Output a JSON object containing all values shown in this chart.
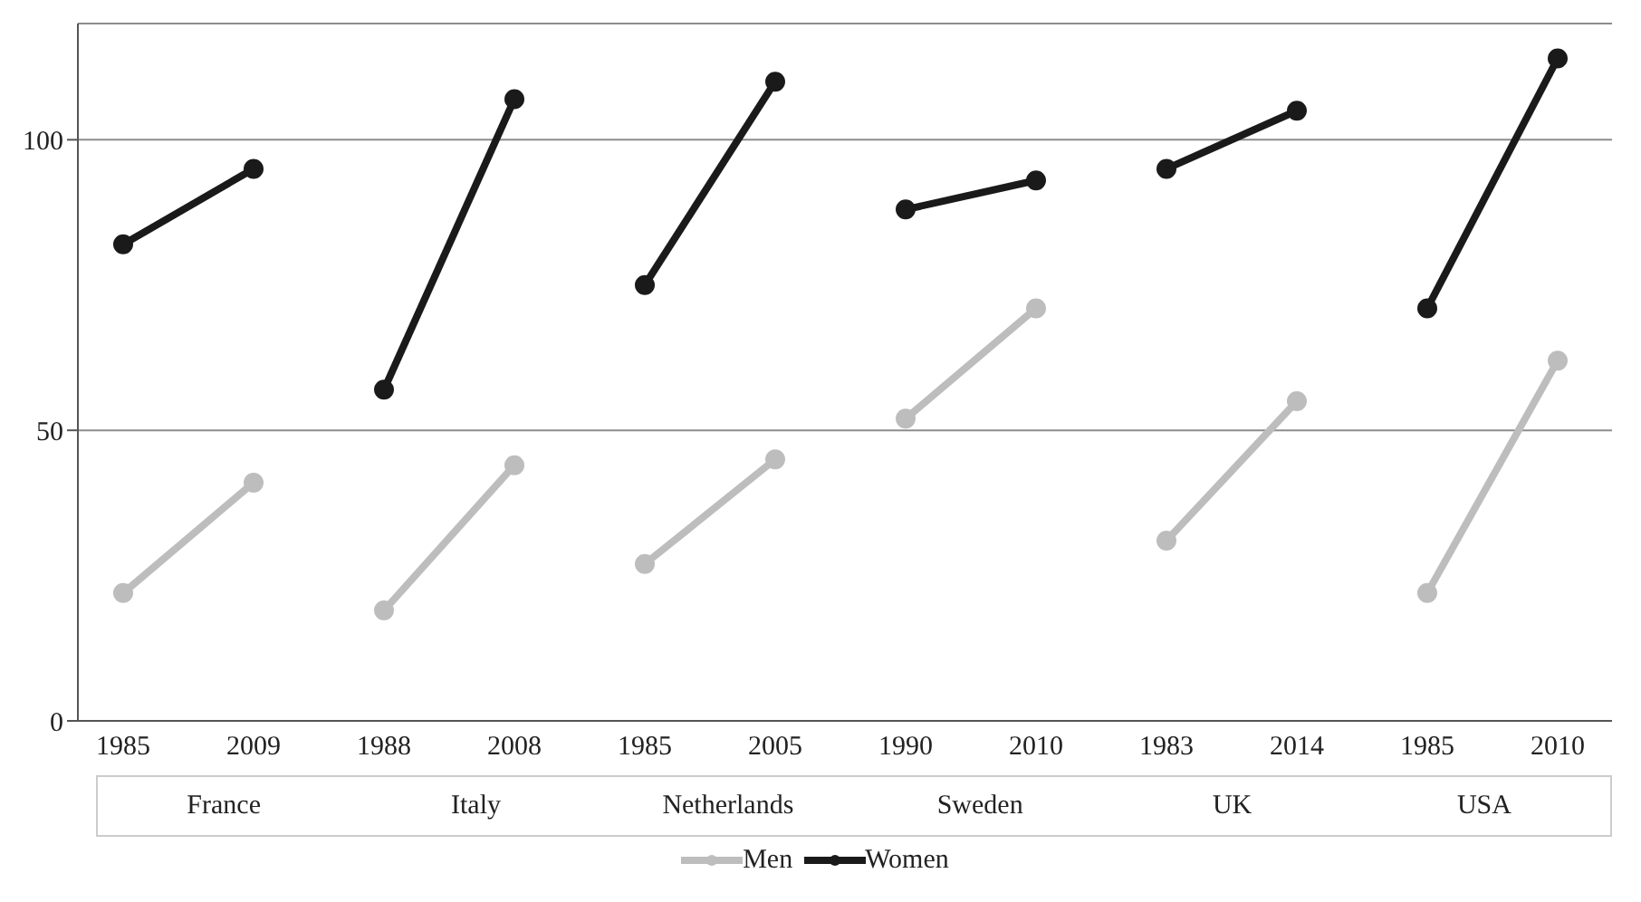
{
  "chart_data": {
    "type": "line",
    "categories": [
      "1985",
      "2009",
      "1988",
      "2008",
      "1985",
      "2005",
      "1990",
      "2010",
      "1983",
      "2014",
      "1985",
      "2010"
    ],
    "annotations": [
      "France",
      "Italy",
      "Netherlands",
      "Sweden",
      "UK",
      "USA"
    ],
    "series": [
      {
        "name": "Men",
        "color": "#bdbdbd",
        "values": [
          22,
          41,
          19,
          44,
          27,
          45,
          52,
          71,
          31,
          55,
          22,
          62
        ]
      },
      {
        "name": "Women",
        "color": "#1a1a1a",
        "values": [
          82,
          95,
          57,
          107,
          75,
          110,
          88,
          93,
          95,
          105,
          71,
          114
        ]
      }
    ],
    "ylim": [
      0,
      120
    ],
    "yticks": [
      0,
      50,
      100
    ],
    "grid": "y",
    "legend": "bottom",
    "marker": "circle",
    "line_style": "solid"
  }
}
